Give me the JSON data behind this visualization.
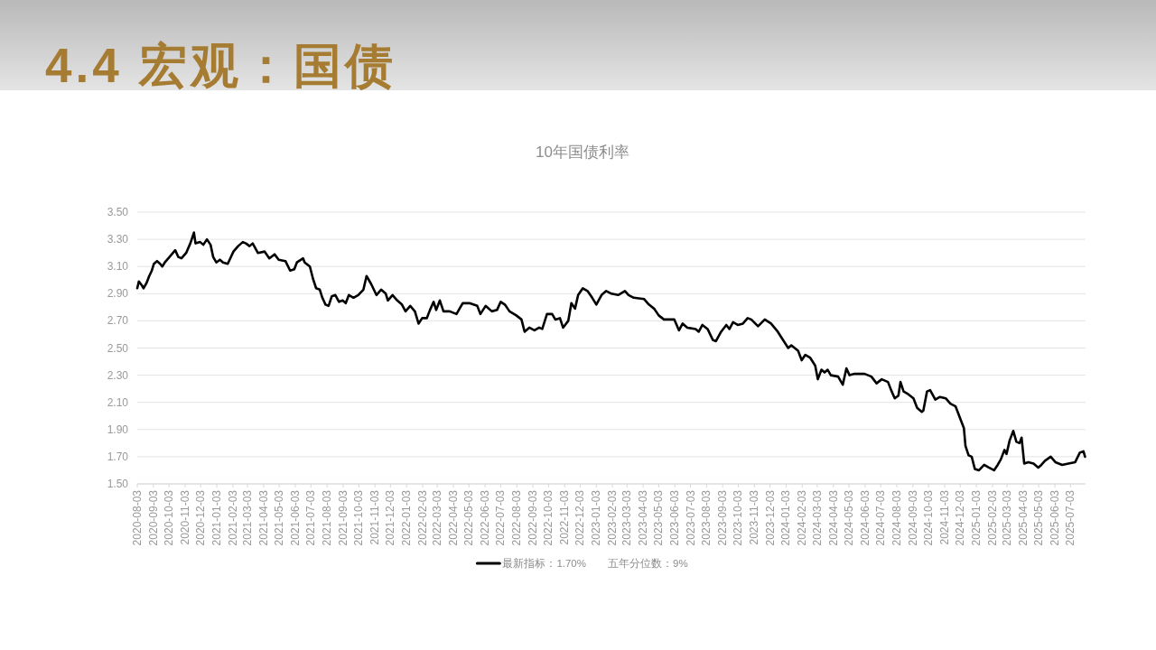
{
  "chart_data": {
    "type": "line",
    "title": "4.4 宏观：国债",
    "subtitle": "10年国债利率",
    "x": [
      "2020-08-03",
      "2020-08-06",
      "2020-08-12",
      "2020-08-15",
      "2020-08-21",
      "2020-08-26",
      "2020-08-31",
      "2020-09-04",
      "2020-09-10",
      "2020-09-16",
      "2020-09-20",
      "2020-09-25",
      "2020-10-04",
      "2020-10-15",
      "2020-10-21",
      "2020-10-27",
      "2020-11-05",
      "2020-11-13",
      "2020-11-20",
      "2020-11-23",
      "2020-12-02",
      "2020-12-08",
      "2020-12-15",
      "2020-12-22",
      "2020-12-27",
      "2021-01-02",
      "2021-01-09",
      "2021-01-15",
      "2021-01-24",
      "2021-02-04",
      "2021-02-13",
      "2021-02-22",
      "2021-02-28",
      "2021-03-07",
      "2021-03-13",
      "2021-03-23",
      "2021-04-05",
      "2021-04-14",
      "2021-04-24",
      "2021-05-02",
      "2021-05-15",
      "2021-05-24",
      "2021-06-01",
      "2021-06-06",
      "2021-06-18",
      "2021-06-21",
      "2021-07-01",
      "2021-07-07",
      "2021-07-13",
      "2021-07-20",
      "2021-07-25",
      "2021-07-31",
      "2021-08-06",
      "2021-08-12",
      "2021-08-19",
      "2021-08-26",
      "2021-09-02",
      "2021-09-08",
      "2021-09-14",
      "2021-09-23",
      "2021-10-02",
      "2021-10-12",
      "2021-10-18",
      "2021-10-27",
      "2021-11-06",
      "2021-11-15",
      "2021-11-24",
      "2021-11-28",
      "2021-12-07",
      "2021-12-16",
      "2021-12-25",
      "2022-01-01",
      "2022-01-10",
      "2022-01-19",
      "2022-01-26",
      "2022-02-02",
      "2022-02-11",
      "2022-02-17",
      "2022-02-24",
      "2022-03-01",
      "2022-03-08",
      "2022-03-15",
      "2022-03-27",
      "2022-04-09",
      "2022-04-21",
      "2022-05-04",
      "2022-05-19",
      "2022-05-25",
      "2022-06-04",
      "2022-06-16",
      "2022-06-26",
      "2022-07-03",
      "2022-07-11",
      "2022-07-20",
      "2022-08-02",
      "2022-08-12",
      "2022-08-18",
      "2022-08-27",
      "2022-09-06",
      "2022-09-15",
      "2022-09-21",
      "2022-09-30",
      "2022-10-10",
      "2022-10-16",
      "2022-10-25",
      "2022-10-31",
      "2022-11-10",
      "2022-11-16",
      "2022-11-23",
      "2022-11-29",
      "2022-12-08",
      "2022-12-17",
      "2022-12-26",
      "2023-01-03",
      "2023-01-13",
      "2023-01-22",
      "2023-02-01",
      "2023-02-14",
      "2023-02-27",
      "2023-03-06",
      "2023-03-16",
      "2023-04-05",
      "2023-04-14",
      "2023-04-24",
      "2023-05-03",
      "2023-05-13",
      "2023-06-02",
      "2023-06-11",
      "2023-06-18",
      "2023-06-27",
      "2023-07-13",
      "2023-07-19",
      "2023-07-26",
      "2023-08-05",
      "2023-08-15",
      "2023-08-21",
      "2023-08-31",
      "2023-09-10",
      "2023-09-16",
      "2023-09-23",
      "2023-10-02",
      "2023-10-12",
      "2023-10-21",
      "2023-10-28",
      "2023-11-10",
      "2023-11-23",
      "2023-12-05",
      "2023-12-18",
      "2023-12-28",
      "2024-01-07",
      "2024-01-13",
      "2024-01-26",
      "2024-02-02",
      "2024-02-09",
      "2024-02-18",
      "2024-02-28",
      "2024-03-04",
      "2024-03-11",
      "2024-03-17",
      "2024-03-23",
      "2024-03-29",
      "2024-04-12",
      "2024-04-21",
      "2024-04-28",
      "2024-05-04",
      "2024-05-14",
      "2024-06-02",
      "2024-06-15",
      "2024-06-25",
      "2024-07-05",
      "2024-07-17",
      "2024-07-23",
      "2024-07-30",
      "2024-08-06",
      "2024-08-10",
      "2024-08-16",
      "2024-08-25",
      "2024-09-04",
      "2024-09-11",
      "2024-09-20",
      "2024-09-23",
      "2024-09-30",
      "2024-10-06",
      "2024-10-16",
      "2024-10-25",
      "2024-11-05",
      "2024-11-14",
      "2024-11-24",
      "2024-12-03",
      "2024-12-10",
      "2024-12-13",
      "2024-12-19",
      "2024-12-25",
      "2024-12-31",
      "2025-01-08",
      "2025-01-18",
      "2025-01-27",
      "2025-02-06",
      "2025-02-13",
      "2025-02-19",
      "2025-02-26",
      "2025-03-02",
      "2025-03-08",
      "2025-03-15",
      "2025-03-21",
      "2025-03-27",
      "2025-03-31",
      "2025-04-05",
      "2025-04-13",
      "2025-04-23",
      "2025-05-02",
      "2025-05-08",
      "2025-05-15",
      "2025-05-26",
      "2025-06-04",
      "2025-06-17",
      "2025-06-29",
      "2025-07-12",
      "2025-07-21",
      "2025-07-28",
      "2025-07-31"
    ],
    "series": [
      {
        "name": "最新指标：1.70%",
        "color": "#000000",
        "values": [
          2.94,
          2.99,
          2.96,
          2.94,
          2.98,
          3.03,
          3.07,
          3.12,
          3.14,
          3.12,
          3.1,
          3.13,
          3.17,
          3.22,
          3.17,
          3.16,
          3.2,
          3.27,
          3.35,
          3.27,
          3.28,
          3.26,
          3.3,
          3.26,
          3.17,
          3.13,
          3.15,
          3.13,
          3.12,
          3.21,
          3.25,
          3.28,
          3.27,
          3.25,
          3.27,
          3.2,
          3.21,
          3.16,
          3.19,
          3.15,
          3.14,
          3.07,
          3.08,
          3.13,
          3.16,
          3.13,
          3.1,
          3.01,
          2.94,
          2.93,
          2.87,
          2.82,
          2.81,
          2.88,
          2.89,
          2.84,
          2.85,
          2.83,
          2.89,
          2.87,
          2.89,
          2.93,
          3.03,
          2.97,
          2.89,
          2.93,
          2.9,
          2.85,
          2.89,
          2.85,
          2.82,
          2.77,
          2.81,
          2.77,
          2.68,
          2.72,
          2.72,
          2.78,
          2.84,
          2.78,
          2.85,
          2.77,
          2.77,
          2.75,
          2.83,
          2.83,
          2.81,
          2.75,
          2.81,
          2.77,
          2.78,
          2.84,
          2.82,
          2.77,
          2.74,
          2.71,
          2.62,
          2.65,
          2.63,
          2.65,
          2.64,
          2.75,
          2.75,
          2.71,
          2.72,
          2.65,
          2.7,
          2.83,
          2.79,
          2.89,
          2.94,
          2.92,
          2.87,
          2.82,
          2.89,
          2.92,
          2.9,
          2.89,
          2.92,
          2.89,
          2.87,
          2.86,
          2.82,
          2.79,
          2.74,
          2.71,
          2.71,
          2.63,
          2.68,
          2.65,
          2.64,
          2.62,
          2.67,
          2.64,
          2.56,
          2.55,
          2.62,
          2.67,
          2.64,
          2.69,
          2.67,
          2.68,
          2.72,
          2.71,
          2.66,
          2.71,
          2.68,
          2.62,
          2.56,
          2.5,
          2.52,
          2.48,
          2.41,
          2.45,
          2.43,
          2.37,
          2.27,
          2.34,
          2.32,
          2.34,
          2.3,
          2.29,
          2.23,
          2.35,
          2.3,
          2.31,
          2.31,
          2.29,
          2.24,
          2.27,
          2.25,
          2.19,
          2.13,
          2.15,
          2.25,
          2.18,
          2.16,
          2.13,
          2.06,
          2.03,
          2.04,
          2.18,
          2.19,
          2.12,
          2.14,
          2.13,
          2.09,
          2.07,
          1.98,
          1.91,
          1.78,
          1.71,
          1.7,
          1.61,
          1.6,
          1.64,
          1.62,
          1.6,
          1.64,
          1.68,
          1.75,
          1.72,
          1.82,
          1.89,
          1.81,
          1.8,
          1.84,
          1.65,
          1.66,
          1.65,
          1.62,
          1.64,
          1.67,
          1.7,
          1.66,
          1.64,
          1.65,
          1.66,
          1.73,
          1.74,
          1.7
        ]
      }
    ],
    "xlim": [
      "2020-08-03",
      "2025-08-01"
    ],
    "xticks": [
      "2020-08-03",
      "2020-09-03",
      "2020-10-03",
      "2020-11-03",
      "2020-12-03",
      "2021-01-03",
      "2021-02-03",
      "2021-03-03",
      "2021-04-03",
      "2021-05-03",
      "2021-06-03",
      "2021-07-03",
      "2021-08-03",
      "2021-09-03",
      "2021-10-03",
      "2021-11-03",
      "2021-12-03",
      "2022-01-03",
      "2022-02-03",
      "2022-03-03",
      "2022-04-03",
      "2022-05-03",
      "2022-06-03",
      "2022-07-03",
      "2022-08-03",
      "2022-09-03",
      "2022-10-03",
      "2022-11-03",
      "2022-12-03",
      "2023-01-03",
      "2023-02-03",
      "2023-03-03",
      "2023-04-03",
      "2023-05-03",
      "2023-06-03",
      "2023-07-03",
      "2023-08-03",
      "2023-09-03",
      "2023-10-03",
      "2023-11-03",
      "2023-12-03",
      "2024-01-03",
      "2024-02-03",
      "2024-03-03",
      "2024-04-03",
      "2024-05-03",
      "2024-06-03",
      "2024-07-03",
      "2024-08-03",
      "2024-09-03",
      "2024-10-03",
      "2024-11-03",
      "2024-12-03",
      "2025-01-03",
      "2025-02-03",
      "2025-03-03",
      "2025-04-03",
      "2025-05-03",
      "2025-06-03",
      "2025-07-03"
    ],
    "ylim": [
      1.5,
      3.5
    ],
    "yticks": [
      {
        "value": 1.5,
        "label": "1.50"
      },
      {
        "value": 1.7,
        "label": "1.70"
      },
      {
        "value": 1.9,
        "label": "1.90"
      },
      {
        "value": 2.1,
        "label": "2.10"
      },
      {
        "value": 2.3,
        "label": "2.30"
      },
      {
        "value": 2.5,
        "label": "2.50"
      },
      {
        "value": 2.7,
        "label": "2.70"
      },
      {
        "value": 2.9,
        "label": "2.90"
      },
      {
        "value": 3.1,
        "label": "3.10"
      },
      {
        "value": 3.3,
        "label": "3.30"
      },
      {
        "value": 3.5,
        "label": "3.50"
      }
    ],
    "grid": "y",
    "legend": "bottom",
    "annotations": [
      "五年分位数：9%"
    ]
  }
}
